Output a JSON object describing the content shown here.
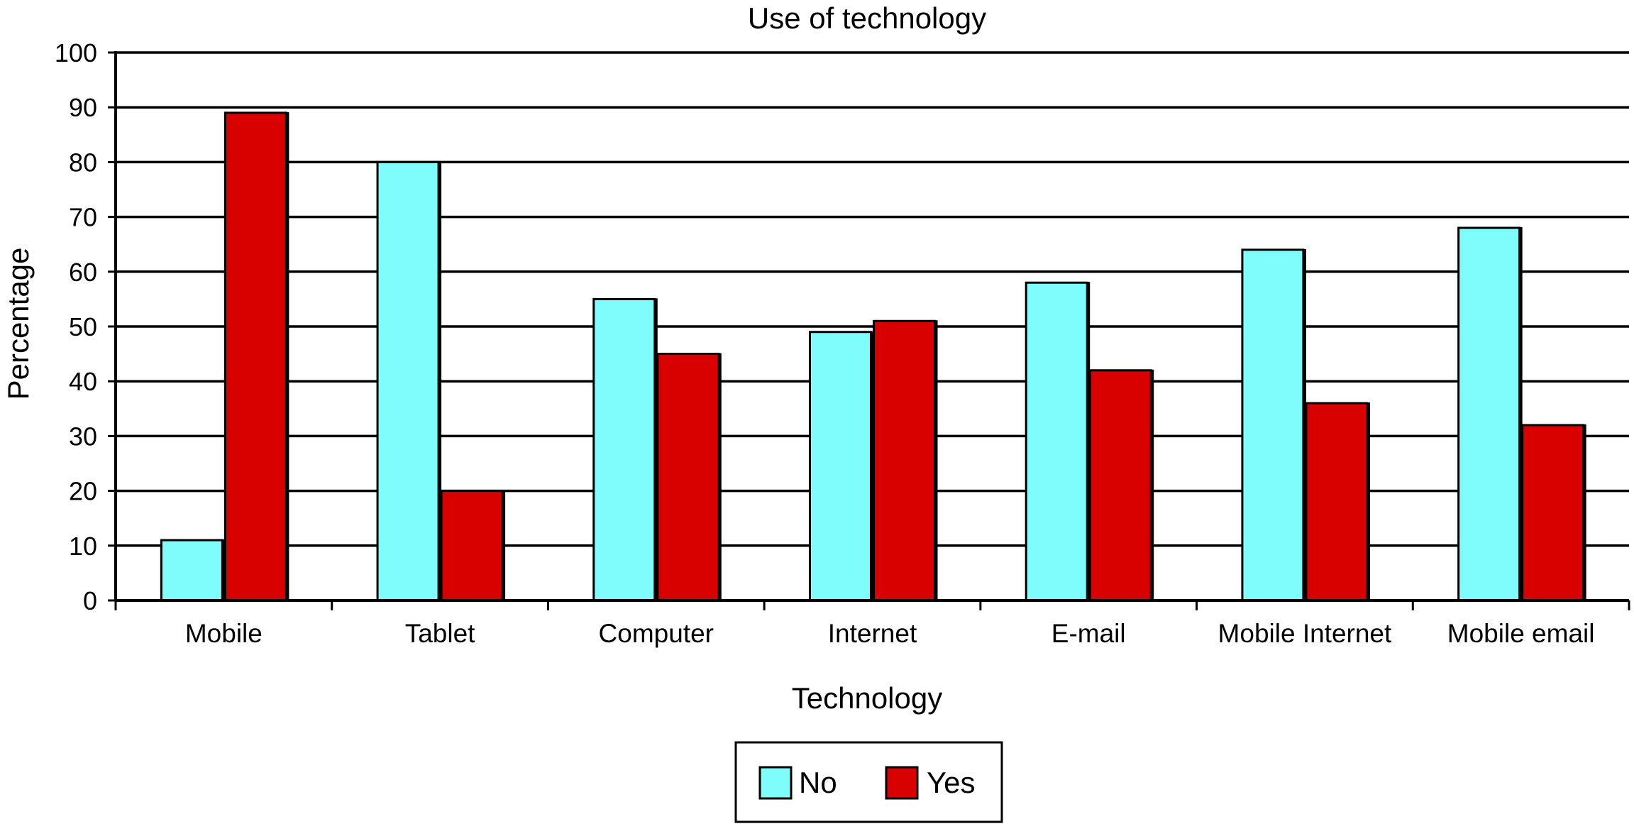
{
  "chart_data": {
    "type": "bar",
    "title": "Use of technology",
    "xlabel": "Technology",
    "ylabel": "Percentage",
    "ylim": [
      0,
      100
    ],
    "yticks": [
      0,
      10,
      20,
      30,
      40,
      50,
      60,
      70,
      80,
      90,
      100
    ],
    "grid": true,
    "legend_position": "bottom-center",
    "categories": [
      "Mobile",
      "Tablet",
      "Computer",
      "Internet",
      "E-mail",
      "Mobile Internet",
      "Mobile email"
    ],
    "series": [
      {
        "name": "No",
        "color": "#7ffcfc",
        "values": [
          11,
          80,
          55,
          49,
          58,
          64,
          68
        ]
      },
      {
        "name": "Yes",
        "color": "#d90000",
        "values": [
          89,
          20,
          45,
          51,
          42,
          36,
          32
        ]
      }
    ]
  }
}
